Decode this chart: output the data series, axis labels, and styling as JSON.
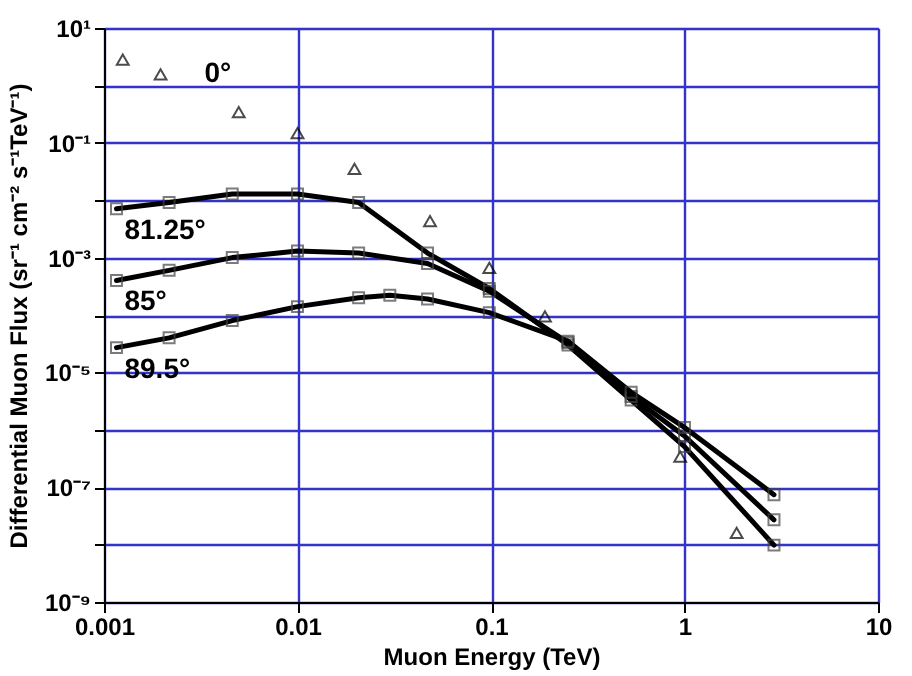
{
  "chart_data": {
    "type": "line",
    "xlabel": "Muon Energy (TeV)",
    "ylabel": "Differential Muon Flux (sr⁻¹ cm⁻² s⁻¹TeV⁻¹)",
    "log": "xy",
    "grid": true,
    "marker": "square",
    "line_style": "solid",
    "xlim": [
      0.001,
      10
    ],
    "xticks": [
      0.001,
      0.01,
      0.1,
      1,
      10
    ],
    "ylim": [
      1e-09,
      10
    ],
    "yticks": [
      {
        "value": 10,
        "label": "10¹"
      },
      {
        "value": 1,
        "label": null
      },
      {
        "value": 0.1,
        "label": "10⁻¹"
      },
      {
        "value": 0.01,
        "label": null
      },
      {
        "value": 0.001,
        "label": "10⁻³"
      },
      {
        "value": 0.0001,
        "label": null
      },
      {
        "value": 1e-05,
        "label": "10⁻⁵"
      },
      {
        "value": 1e-06,
        "label": null
      },
      {
        "value": 1e-07,
        "label": "10⁻⁷"
      },
      {
        "value": 1e-08,
        "label": null
      },
      {
        "value": 1e-09,
        "label": "10⁻⁹"
      }
    ],
    "series": [
      {
        "name": "0°",
        "type": "scatter",
        "marker": "triangle",
        "color": "#000000",
        "x": [
          0.00125,
          0.00196,
          0.00497,
          0.01,
          0.0197,
          0.0484,
          0.098,
          0.19,
          0.95,
          1.86
        ],
        "values": [
          2.8,
          1.56,
          0.343,
          0.148,
          0.035,
          0.0043,
          0.00066,
          9.5e-05,
          3.4e-07,
          1.6e-08
        ]
      },
      {
        "name": "81.25°",
        "color": "#000000",
        "x": [
          0.00116,
          0.00217,
          0.0046,
          0.01,
          0.0207,
          0.047,
          0.098,
          0.25,
          0.53,
          1.0,
          2.9
        ],
        "values": [
          0.0071,
          0.0091,
          0.0128,
          0.0128,
          0.0091,
          0.0012,
          0.00029,
          3e-05,
          3.3e-06,
          5.1e-07,
          9.8e-09
        ]
      },
      {
        "name": "85°",
        "color": "#000000",
        "x": [
          0.00116,
          0.00217,
          0.0046,
          0.01,
          0.0207,
          0.047,
          0.098,
          0.25,
          0.53,
          1.0,
          2.9
        ],
        "values": [
          0.0004,
          0.0006,
          0.001,
          0.0013,
          0.0012,
          0.00079,
          0.00026,
          3.3e-05,
          3.8e-06,
          7.8e-07,
          2.7e-08
        ]
      },
      {
        "name": "89.5°",
        "color": "#000000",
        "x": [
          0.00116,
          0.00217,
          0.0046,
          0.01,
          0.0207,
          0.03,
          0.047,
          0.098,
          0.25,
          0.53,
          1.0,
          2.9
        ],
        "values": [
          2.7e-05,
          4e-05,
          8e-05,
          0.00014,
          0.0002,
          0.00022,
          0.00019,
          0.00011,
          3.5e-05,
          4.5e-06,
          1.1e-06,
          7.4e-08
        ]
      }
    ]
  }
}
